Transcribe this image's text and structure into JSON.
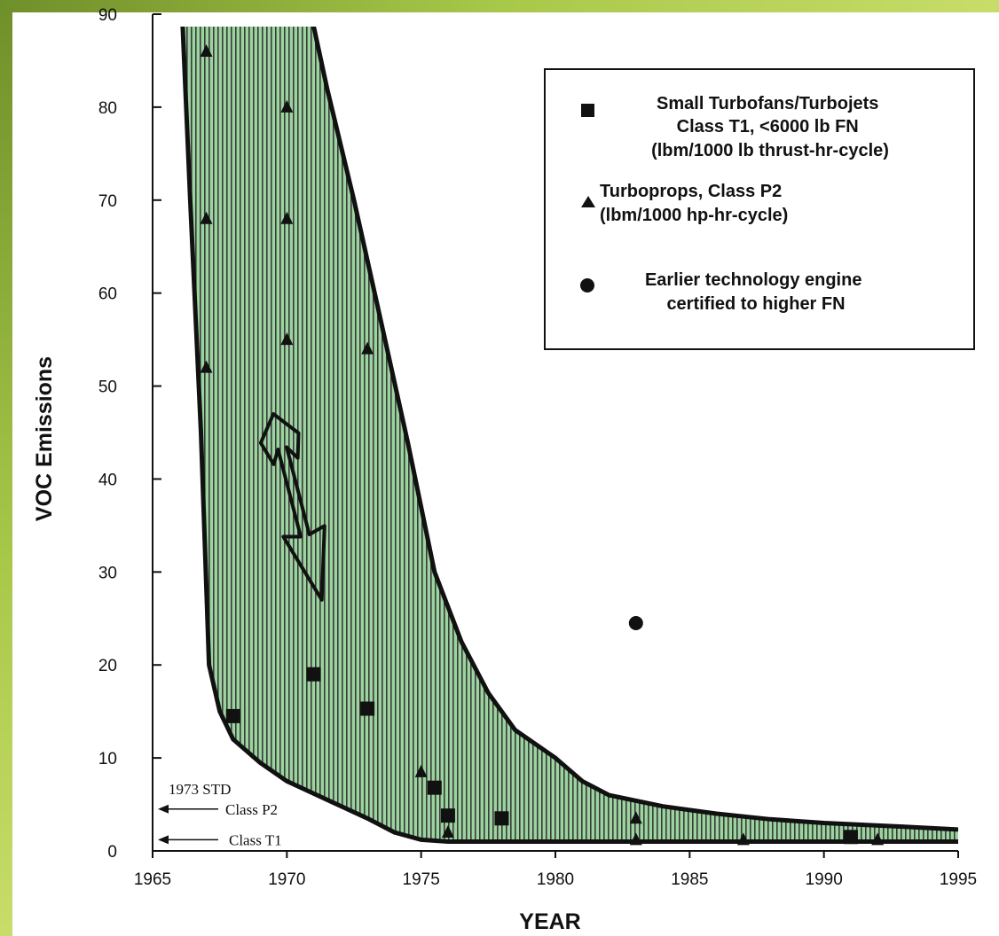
{
  "chart_data": {
    "type": "scatter",
    "xlabel": "YEAR",
    "ylabel": "VOC Emissions",
    "xlim": [
      1965,
      1995
    ],
    "ylim": [
      0,
      90
    ],
    "grid": false,
    "legend_position": "top-right",
    "x_ticks": [
      "1965",
      "1970",
      "1975",
      "1980",
      "1985",
      "1990",
      "1995"
    ],
    "y_ticks": [
      "0",
      "10",
      "20",
      "30",
      "40",
      "50",
      "60",
      "70",
      "80",
      "90"
    ],
    "band_color": "#8fcf95",
    "series": [
      {
        "name": "Small Turbofans/Turbojets Class T1, <6000 lb FN (lbm/1000 lb thrust-hr-cycle)",
        "marker": "square",
        "points": [
          [
            1968,
            14.5
          ],
          [
            1971,
            19
          ],
          [
            1973,
            15.3
          ],
          [
            1975.5,
            6.8
          ],
          [
            1976,
            3.8
          ],
          [
            1978,
            3.5
          ],
          [
            1991,
            1.5
          ]
        ]
      },
      {
        "name": "Turboprops, Class P2 (lbm/1000 hp-hr-cycle)",
        "marker": "triangle",
        "points": [
          [
            1967,
            86
          ],
          [
            1967,
            68
          ],
          [
            1967,
            52
          ],
          [
            1970,
            80
          ],
          [
            1970,
            68
          ],
          [
            1970,
            55
          ],
          [
            1973,
            54
          ],
          [
            1975,
            8.5
          ],
          [
            1976,
            2
          ],
          [
            1983,
            3.5
          ],
          [
            1983,
            1.2
          ],
          [
            1987,
            1.2
          ],
          [
            1992,
            1.2
          ]
        ]
      },
      {
        "name": "Earlier technology engine certified to higher FN",
        "marker": "circle",
        "points": [
          [
            1983,
            24.5
          ]
        ]
      }
    ],
    "upper_envelope": [
      [
        1970.9,
        90
      ],
      [
        1971.5,
        82
      ],
      [
        1972.5,
        70
      ],
      [
        1973.5,
        57
      ],
      [
        1974.5,
        44
      ],
      [
        1975.5,
        30
      ],
      [
        1976.5,
        22.5
      ],
      [
        1977.5,
        17
      ],
      [
        1978.5,
        13
      ],
      [
        1980,
        10
      ],
      [
        1981,
        7.5
      ],
      [
        1982,
        6
      ],
      [
        1984,
        4.8
      ],
      [
        1986,
        4
      ],
      [
        1988,
        3.4
      ],
      [
        1990,
        3
      ],
      [
        1993,
        2.6
      ],
      [
        1995,
        2.3
      ]
    ],
    "lower_envelope": [
      [
        1966.1,
        90
      ],
      [
        1966.4,
        70
      ],
      [
        1966.8,
        45
      ],
      [
        1967.1,
        20
      ],
      [
        1967.5,
        15
      ],
      [
        1968,
        12
      ],
      [
        1969,
        9.5
      ],
      [
        1970,
        7.5
      ],
      [
        1971.5,
        5.5
      ],
      [
        1973,
        3.5
      ],
      [
        1974,
        2
      ],
      [
        1975,
        1.2
      ],
      [
        1976,
        1
      ],
      [
        1985,
        1
      ],
      [
        1995,
        1
      ]
    ],
    "arrow": {
      "from": [
        1969.5,
        47
      ],
      "to": [
        1971.3,
        27
      ]
    },
    "reference_labels": [
      {
        "text": "1973 STD",
        "y": null
      },
      {
        "text": "Class P2",
        "y": 4.5
      },
      {
        "text": "Class T1",
        "y": 1.2
      }
    ]
  }
}
